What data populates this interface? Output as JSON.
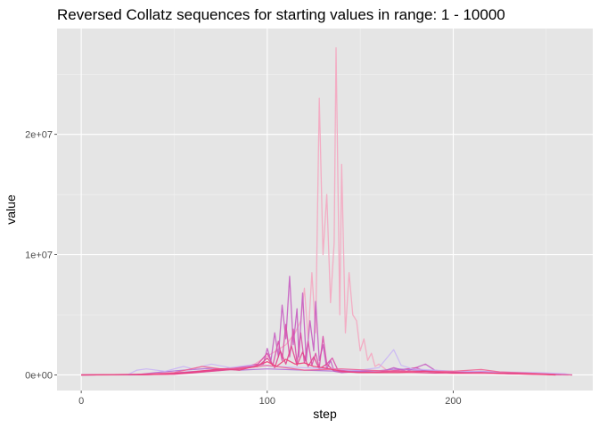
{
  "chart_data": {
    "type": "line",
    "title": "Reversed Collatz sequences for starting values in range: 1 - 10000",
    "xlabel": "step",
    "ylabel": "value",
    "xlim": [
      -13,
      275
    ],
    "ylim": [
      -1300000,
      28800000
    ],
    "x_ticks": [
      0,
      100,
      200
    ],
    "x_tick_labels": [
      "0",
      "100",
      "200"
    ],
    "y_ticks": [
      0,
      10000000,
      20000000
    ],
    "y_tick_labels": [
      "0e+00",
      "1e+07",
      "2e+07"
    ],
    "grid": true,
    "legend": "none",
    "colors": {
      "panel": "#e5e5e5",
      "grid_major": "#ffffff",
      "grid_minor": "#f2f2f2",
      "palette": [
        "#f06292",
        "#d94fa8",
        "#c65ec2",
        "#e0458f",
        "#b36fd6",
        "#f4a6c0",
        "#c9b4f5",
        "#ec407a"
      ]
    },
    "series": [
      {
        "color": "#f4a6c0",
        "width": 1.3,
        "points": [
          [
            0,
            1
          ],
          [
            30,
            4000
          ],
          [
            60,
            150000
          ],
          [
            90,
            600000
          ],
          [
            110,
            2500000
          ],
          [
            115,
            3500000
          ],
          [
            118,
            4500000
          ],
          [
            120,
            7200000
          ],
          [
            122,
            3000000
          ],
          [
            124,
            8500000
          ],
          [
            126,
            3500000
          ],
          [
            128,
            23000000
          ],
          [
            130,
            10000000
          ],
          [
            132,
            15000000
          ],
          [
            134,
            6000000
          ],
          [
            136,
            11000000
          ],
          [
            137,
            27200000
          ],
          [
            139,
            5000000
          ],
          [
            140,
            17500000
          ],
          [
            142,
            3500000
          ],
          [
            144,
            8500000
          ],
          [
            146,
            5000000
          ],
          [
            148,
            4500000
          ],
          [
            150,
            2000000
          ],
          [
            152,
            3000000
          ],
          [
            154,
            1200000
          ],
          [
            156,
            1800000
          ],
          [
            158,
            700000
          ],
          [
            160,
            900000
          ],
          [
            165,
            300000
          ],
          [
            170,
            200000
          ],
          [
            180,
            150000
          ],
          [
            200,
            120000
          ],
          [
            220,
            100000
          ],
          [
            240,
            80000
          ],
          [
            262,
            1000
          ]
        ]
      },
      {
        "color": "#c65ec2",
        "width": 1.3,
        "points": [
          [
            0,
            1
          ],
          [
            40,
            50000
          ],
          [
            70,
            400000
          ],
          [
            90,
            700000
          ],
          [
            98,
            900000
          ],
          [
            100,
            2200000
          ],
          [
            102,
            1200000
          ],
          [
            104,
            3500000
          ],
          [
            106,
            1500000
          ],
          [
            108,
            5800000
          ],
          [
            110,
            3000000
          ],
          [
            112,
            8200000
          ],
          [
            114,
            2500000
          ],
          [
            116,
            5500000
          ],
          [
            117,
            1500000
          ],
          [
            119,
            6800000
          ],
          [
            121,
            1200000
          ],
          [
            123,
            4500000
          ],
          [
            125,
            2000000
          ],
          [
            126,
            6100000
          ],
          [
            128,
            1200000
          ],
          [
            130,
            2500000
          ],
          [
            132,
            500000
          ],
          [
            134,
            1200000
          ],
          [
            136,
            300000
          ],
          [
            140,
            200000
          ],
          [
            150,
            300000
          ],
          [
            160,
            200000
          ],
          [
            168,
            600000
          ],
          [
            175,
            300000
          ],
          [
            185,
            900000
          ],
          [
            190,
            400000
          ],
          [
            200,
            200000
          ],
          [
            215,
            300000
          ],
          [
            230,
            150000
          ],
          [
            250,
            50000
          ],
          [
            262,
            5000
          ]
        ]
      },
      {
        "color": "#d94fa8",
        "width": 1.3,
        "points": [
          [
            0,
            1
          ],
          [
            35,
            20000
          ],
          [
            60,
            200000
          ],
          [
            80,
            500000
          ],
          [
            95,
            900000
          ],
          [
            100,
            1800000
          ],
          [
            103,
            800000
          ],
          [
            106,
            2800000
          ],
          [
            108,
            1200000
          ],
          [
            110,
            4200000
          ],
          [
            112,
            1500000
          ],
          [
            114,
            3800000
          ],
          [
            116,
            1000000
          ],
          [
            118,
            3500000
          ],
          [
            120,
            1000000
          ],
          [
            122,
            2800000
          ],
          [
            124,
            800000
          ],
          [
            126,
            1800000
          ],
          [
            128,
            600000
          ],
          [
            130,
            3200000
          ],
          [
            132,
            900000
          ],
          [
            135,
            1400000
          ],
          [
            138,
            400000
          ],
          [
            145,
            300000
          ],
          [
            160,
            200000
          ],
          [
            180,
            600000
          ],
          [
            185,
            300000
          ],
          [
            200,
            150000
          ],
          [
            220,
            200000
          ],
          [
            240,
            100000
          ],
          [
            258,
            2000
          ]
        ]
      },
      {
        "color": "#e0458f",
        "width": 1.3,
        "points": [
          [
            0,
            1
          ],
          [
            50,
            60000
          ],
          [
            70,
            300000
          ],
          [
            85,
            500000
          ],
          [
            95,
            700000
          ],
          [
            100,
            1400000
          ],
          [
            104,
            600000
          ],
          [
            107,
            2000000
          ],
          [
            110,
            900000
          ],
          [
            113,
            2400000
          ],
          [
            116,
            800000
          ],
          [
            119,
            1900000
          ],
          [
            122,
            700000
          ],
          [
            125,
            1500000
          ],
          [
            128,
            500000
          ],
          [
            132,
            900000
          ],
          [
            136,
            300000
          ],
          [
            150,
            200000
          ],
          [
            170,
            300000
          ],
          [
            190,
            150000
          ],
          [
            210,
            250000
          ],
          [
            230,
            100000
          ],
          [
            250,
            40000
          ],
          [
            255,
            1000
          ]
        ]
      },
      {
        "color": "#b36fd6",
        "width": 1.2,
        "points": [
          [
            0,
            1
          ],
          [
            30,
            30000
          ],
          [
            40,
            200000
          ],
          [
            55,
            400000
          ],
          [
            70,
            550000
          ],
          [
            85,
            400000
          ],
          [
            100,
            500000
          ],
          [
            120,
            400000
          ],
          [
            140,
            300000
          ],
          [
            160,
            350000
          ],
          [
            170,
            500000
          ],
          [
            180,
            400000
          ],
          [
            200,
            300000
          ],
          [
            220,
            250000
          ],
          [
            240,
            150000
          ],
          [
            255,
            80000
          ],
          [
            264,
            1000
          ]
        ]
      },
      {
        "color": "#c9b4f5",
        "width": 1.2,
        "points": [
          [
            0,
            1
          ],
          [
            25,
            20000
          ],
          [
            30,
            400000
          ],
          [
            35,
            500000
          ],
          [
            45,
            300000
          ],
          [
            55,
            700000
          ],
          [
            60,
            500000
          ],
          [
            70,
            900000
          ],
          [
            80,
            600000
          ],
          [
            90,
            800000
          ],
          [
            150,
            400000
          ],
          [
            160,
            600000
          ],
          [
            168,
            2100000
          ],
          [
            172,
            800000
          ],
          [
            178,
            500000
          ],
          [
            190,
            400000
          ],
          [
            200,
            300000
          ],
          [
            225,
            250000
          ],
          [
            245,
            200000
          ],
          [
            260,
            100000
          ],
          [
            264,
            1000
          ]
        ]
      },
      {
        "color": "#f06292",
        "width": 1.2,
        "points": [
          [
            0,
            1
          ],
          [
            30,
            50000
          ],
          [
            50,
            200000
          ],
          [
            65,
            700000
          ],
          [
            75,
            500000
          ],
          [
            90,
            600000
          ],
          [
            100,
            800000
          ],
          [
            120,
            400000
          ],
          [
            140,
            500000
          ],
          [
            160,
            350000
          ],
          [
            180,
            300000
          ],
          [
            200,
            300000
          ],
          [
            215,
            450000
          ],
          [
            225,
            250000
          ],
          [
            240,
            150000
          ],
          [
            255,
            50000
          ],
          [
            264,
            1000
          ]
        ]
      },
      {
        "color": "#ec407a",
        "width": 1.3,
        "points": [
          [
            0,
            1
          ],
          [
            45,
            40000
          ],
          [
            60,
            250000
          ],
          [
            75,
            500000
          ],
          [
            85,
            400000
          ],
          [
            95,
            800000
          ],
          [
            100,
            1100000
          ],
          [
            105,
            700000
          ],
          [
            110,
            1300000
          ],
          [
            115,
            900000
          ],
          [
            120,
            1000000
          ],
          [
            125,
            700000
          ],
          [
            130,
            600000
          ],
          [
            140,
            300000
          ],
          [
            150,
            200000
          ],
          [
            170,
            200000
          ],
          [
            185,
            300000
          ],
          [
            200,
            150000
          ],
          [
            215,
            200000
          ],
          [
            230,
            100000
          ],
          [
            245,
            50000
          ],
          [
            255,
            1000
          ]
        ]
      }
    ]
  }
}
